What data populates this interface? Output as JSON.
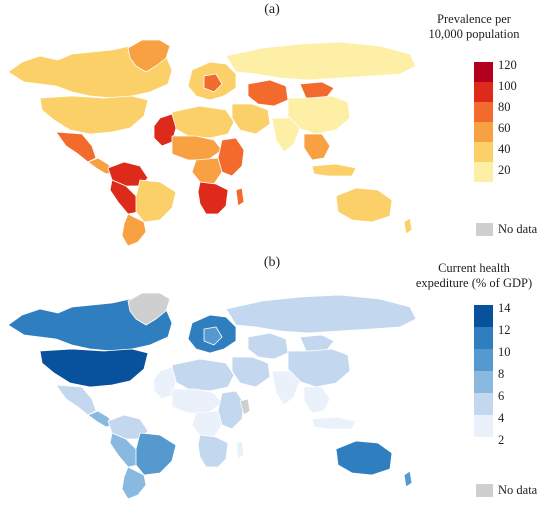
{
  "panel_a": {
    "label": "(a)",
    "legend_title_line1": "Prevalence per",
    "legend_title_line2": "10,000 population",
    "ticks": [
      "120",
      "100",
      "80",
      "60",
      "40",
      "20"
    ],
    "bins": [
      "#b2001e",
      "#dd2a1b",
      "#f26a2c",
      "#f8a142",
      "#fbd068",
      "#feefa6"
    ],
    "no_data": "No data",
    "no_data_color": "#cfcfcf"
  },
  "panel_b": {
    "label": "(b)",
    "legend_title_line1": "Current health",
    "legend_title_line2": "expediture (% of GDP)",
    "ticks": [
      "14",
      "12",
      "10",
      "8",
      "6",
      "4",
      "2"
    ],
    "bins": [
      "#08519c",
      "#2f7ec0",
      "#5599cf",
      "#89b9de",
      "#c3d8ee",
      "#eaf1fa"
    ],
    "no_data": "No data",
    "no_data_color": "#cfcfcf"
  }
}
